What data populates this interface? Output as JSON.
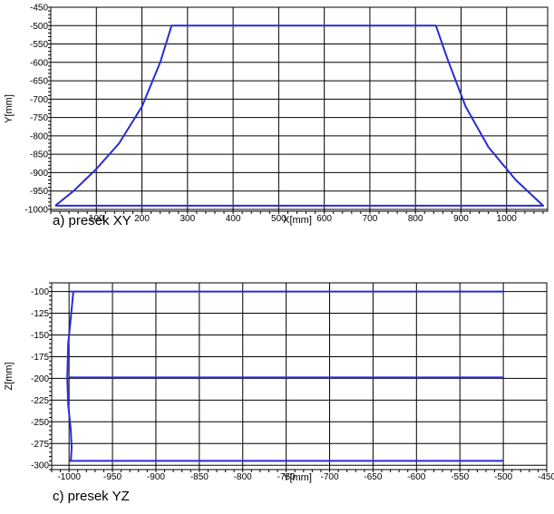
{
  "chart_data": [
    {
      "type": "line",
      "caption": "a) presek XY",
      "xlabel": "X[mm]",
      "ylabel": "Y[mm]",
      "xlim": [
        0,
        1090
      ],
      "ylim": [
        -1005,
        -450
      ],
      "xticks": [
        100,
        200,
        300,
        400,
        500,
        600,
        700,
        800,
        900,
        1000
      ],
      "yticks": [
        -450,
        -500,
        -550,
        -600,
        -650,
        -700,
        -750,
        -800,
        -850,
        -900,
        -950,
        -1000
      ],
      "grid": true,
      "line_color": "#2a2ad8",
      "series": [
        {
          "x": [
            10,
            50,
            100,
            150,
            200,
            240,
            265,
            845,
            870,
            910,
            960,
            1020,
            1080,
            10
          ],
          "y": [
            -990,
            -950,
            -890,
            -820,
            -720,
            -600,
            -500,
            -500,
            -590,
            -720,
            -830,
            -920,
            -990,
            -990
          ]
        }
      ]
    },
    {
      "type": "line",
      "caption": "c) presek YZ",
      "xlabel": "Y[mm]",
      "ylabel": "Z[mm]",
      "xlim": [
        -1020,
        -450
      ],
      "ylim": [
        -305,
        -90
      ],
      "xticks": [
        -1000,
        -950,
        -900,
        -850,
        -800,
        -750,
        -700,
        -650,
        -600,
        -550,
        -500,
        -450
      ],
      "yticks": [
        -100,
        -125,
        -150,
        -175,
        -200,
        -225,
        -250,
        -275,
        -300
      ],
      "grid": true,
      "line_color": "#2a2ad8",
      "series": [
        {
          "x": [
            -1000,
            -500
          ],
          "y": [
            -100,
            -100
          ]
        },
        {
          "x": [
            -1000,
            -500
          ],
          "y": [
            -199,
            -199
          ]
        },
        {
          "x": [
            -1000,
            -500
          ],
          "y": [
            -295,
            -295
          ]
        },
        {
          "x": [
            -995,
            -998,
            -1001,
            -1002,
            -1001,
            -998,
            -997,
            -998
          ],
          "y": [
            -100,
            -130,
            -160,
            -200,
            -230,
            -260,
            -280,
            -295
          ]
        }
      ]
    }
  ]
}
